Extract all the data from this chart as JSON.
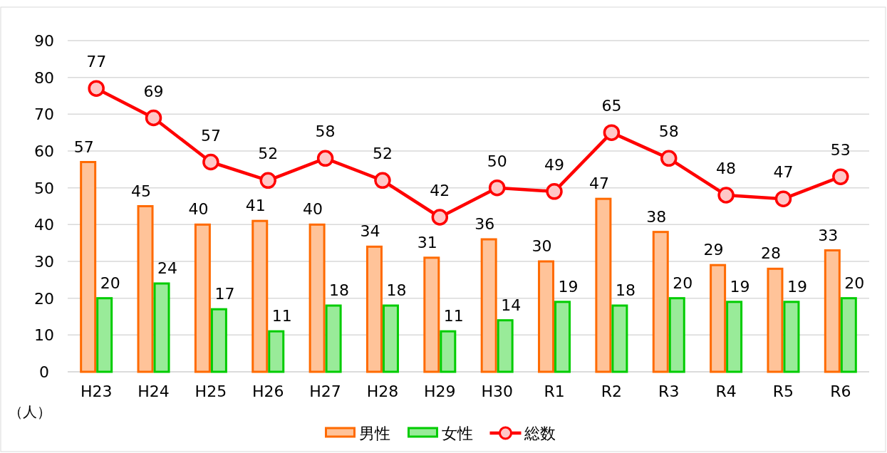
{
  "chart_data": {
    "type": "bar",
    "ylabel": "（人）",
    "categories": [
      "H23",
      "H24",
      "H25",
      "H26",
      "H27",
      "H28",
      "H29",
      "H30",
      "R1",
      "R2",
      "R3",
      "R4",
      "R5",
      "R6"
    ],
    "series": [
      {
        "name": "男性",
        "color": "#ff6a00",
        "values": [
          57,
          45,
          40,
          41,
          40,
          34,
          31,
          36,
          30,
          47,
          38,
          29,
          28,
          33
        ]
      },
      {
        "name": "女性",
        "color": "#00cc00",
        "values": [
          20,
          24,
          17,
          11,
          18,
          18,
          11,
          14,
          19,
          18,
          20,
          19,
          19,
          20
        ]
      },
      {
        "name": "総数",
        "type": "line",
        "color": "#ff0000",
        "values": [
          77,
          69,
          57,
          52,
          58,
          52,
          42,
          50,
          49,
          65,
          58,
          48,
          47,
          53
        ]
      }
    ],
    "ylim": [
      0,
      90
    ],
    "yticks": [
      0,
      10,
      20,
      30,
      40,
      50,
      60,
      70,
      80,
      90
    ],
    "grid": "y",
    "legend": "bottom",
    "data_labels": true,
    "marker": "circle",
    "line_style": "solid"
  }
}
